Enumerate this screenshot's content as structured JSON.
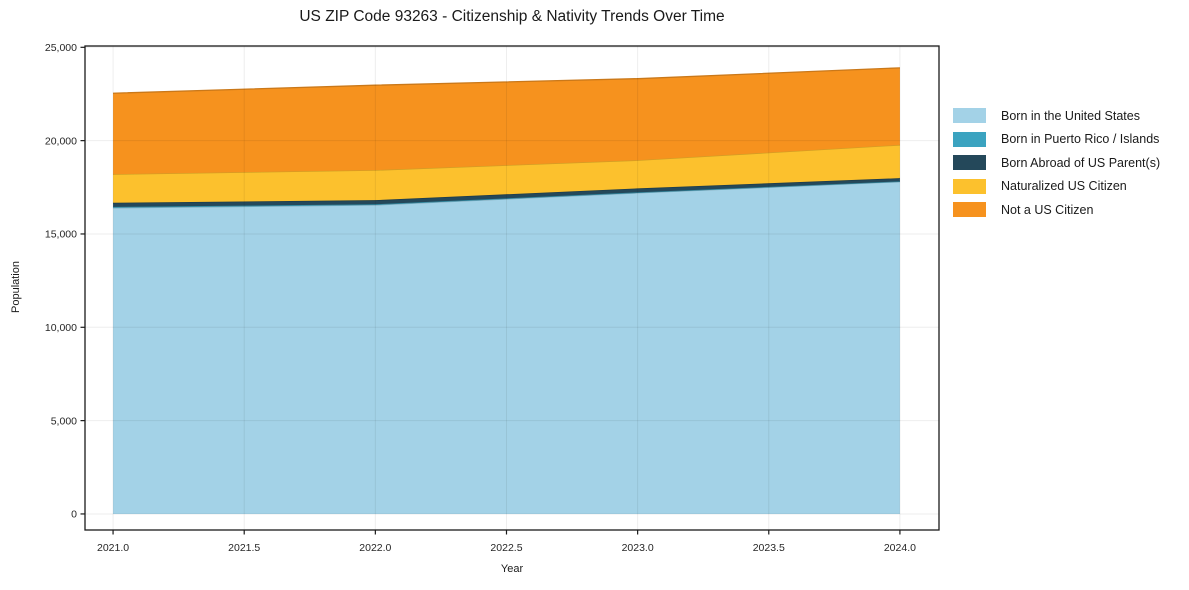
{
  "title": "US ZIP Code 93263 - Citizenship & Nativity Trends Over Time",
  "chart_data": {
    "type": "area",
    "stacked": true,
    "title": "US ZIP Code 93263 - Citizenship & Nativity Trends Over Time",
    "xlabel": "Year",
    "ylabel": "Population",
    "x": [
      2021,
      2022,
      2023,
      2024
    ],
    "series": [
      {
        "name": "Born in the United States",
        "color": "#A3D2E7",
        "values": [
          16400,
          16550,
          17200,
          17800
        ]
      },
      {
        "name": "Born in Puerto Rico / Islands",
        "color": "#3BA3C0",
        "values": [
          50,
          40,
          30,
          20
        ]
      },
      {
        "name": "Born Abroad of US Parent(s)",
        "color": "#24485A",
        "values": [
          220,
          220,
          210,
          170
        ]
      },
      {
        "name": "Naturalized US Citizen",
        "color": "#FCC12D",
        "values": [
          1530,
          1610,
          1510,
          1780
        ]
      },
      {
        "name": "Not a US Citizen",
        "color": "#F6921E",
        "values": [
          4340,
          4550,
          4370,
          4130
        ]
      }
    ],
    "stacked_totals": [
      22540,
      22970,
      23320,
      23900
    ],
    "x_ticks": {
      "values": [
        2021.0,
        2021.5,
        2022.0,
        2022.5,
        2023.0,
        2023.5,
        2024.0
      ],
      "labels": [
        "2021.0",
        "2021.5",
        "2022.0",
        "2022.5",
        "2023.0",
        "2023.5",
        "2024.0"
      ]
    },
    "y_ticks": {
      "values": [
        0,
        5000,
        10000,
        15000,
        20000,
        25000
      ],
      "labels": [
        "0",
        "5,000",
        "10,000",
        "15,000",
        "20,000",
        "25,000"
      ]
    },
    "xlim": [
      2020.893,
      2024.149
    ],
    "ylim": [
      -860,
      25070
    ],
    "grid": true,
    "legend_position": "right"
  },
  "colors": {
    "background": "#ffffff",
    "axis": "#1a1a1a",
    "tick_text": "#262626",
    "grid_overlay": "rgba(0,0,0,0.07)"
  }
}
